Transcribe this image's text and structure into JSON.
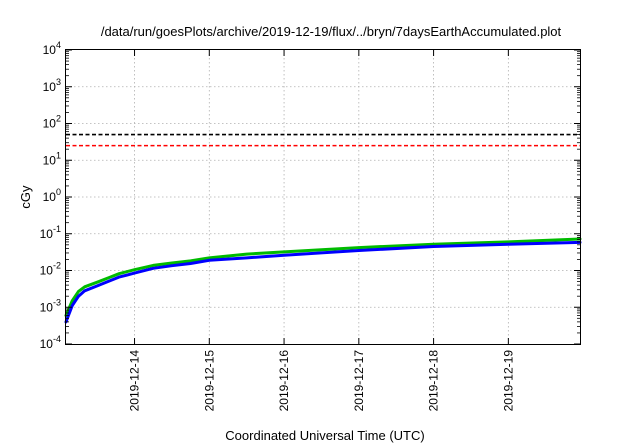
{
  "chart_data": {
    "type": "line",
    "title": "/data/run/goesPlots/archive/2019-12-19/flux/../bryn/7daysEarthAccumulated.plot",
    "xlabel": "Coordinated Universal Time (UTC)",
    "ylabel": "cGy",
    "xlim": [
      "2019-12-13T02:00",
      "2019-12-19T23:00"
    ],
    "ylim": [
      0.0001,
      10000
    ],
    "yscale": "log",
    "grid": true,
    "xticks": [
      "2019-12-14",
      "2019-12-15",
      "2019-12-16",
      "2019-12-17",
      "2019-12-18",
      "2019-12-19"
    ],
    "yticks": [
      {
        "base": "10",
        "exp": "-4",
        "value": 0.0001
      },
      {
        "base": "10",
        "exp": "-3",
        "value": 0.001
      },
      {
        "base": "10",
        "exp": "-2",
        "value": 0.01
      },
      {
        "base": "10",
        "exp": "-1",
        "value": 0.1
      },
      {
        "base": "10",
        "exp": "0",
        "value": 1
      },
      {
        "base": "10",
        "exp": "1",
        "value": 10
      },
      {
        "base": "10",
        "exp": "2",
        "value": 100
      },
      {
        "base": "10",
        "exp": "3",
        "value": 1000
      },
      {
        "base": "10",
        "exp": "4",
        "value": 10000
      }
    ],
    "thresholds": [
      {
        "value": 50,
        "color": "#000000"
      },
      {
        "value": 25,
        "color": "#ff0000"
      }
    ],
    "series": [
      {
        "color": "#00bb00",
        "x": [
          "2019-12-13T02:00",
          "2019-12-13T04:00",
          "2019-12-13T06:00",
          "2019-12-13T08:00",
          "2019-12-13T12:00",
          "2019-12-13T16:00",
          "2019-12-13T19:00",
          "2019-12-14T00:00",
          "2019-12-14T06:00",
          "2019-12-14T12:00",
          "2019-12-14T18:00",
          "2019-12-15T00:00",
          "2019-12-15T12:00",
          "2019-12-16T00:00",
          "2019-12-17T00:00",
          "2019-12-18T00:00",
          "2019-12-19T00:00",
          "2019-12-19T23:00"
        ],
        "y": [
          0.0006,
          0.0015,
          0.0027,
          0.0036,
          0.0048,
          0.0065,
          0.0082,
          0.0105,
          0.0138,
          0.016,
          0.0182,
          0.022,
          0.028,
          0.032,
          0.042,
          0.052,
          0.06,
          0.072
        ]
      },
      {
        "color": "#0000ff",
        "x": [
          "2019-12-13T02:00",
          "2019-12-13T04:00",
          "2019-12-13T06:00",
          "2019-12-13T08:00",
          "2019-12-13T12:00",
          "2019-12-13T16:00",
          "2019-12-13T19:00",
          "2019-12-14T00:00",
          "2019-12-14T06:00",
          "2019-12-14T12:00",
          "2019-12-14T18:00",
          "2019-12-15T00:00",
          "2019-12-15T12:00",
          "2019-12-16T00:00",
          "2019-12-17T00:00",
          "2019-12-18T00:00",
          "2019-12-19T00:00",
          "2019-12-19T23:00"
        ],
        "y": [
          0.0004,
          0.0011,
          0.002,
          0.0028,
          0.0038,
          0.0052,
          0.0066,
          0.0085,
          0.0115,
          0.0135,
          0.0155,
          0.019,
          0.022,
          0.026,
          0.035,
          0.045,
          0.052,
          0.058
        ]
      }
    ]
  }
}
